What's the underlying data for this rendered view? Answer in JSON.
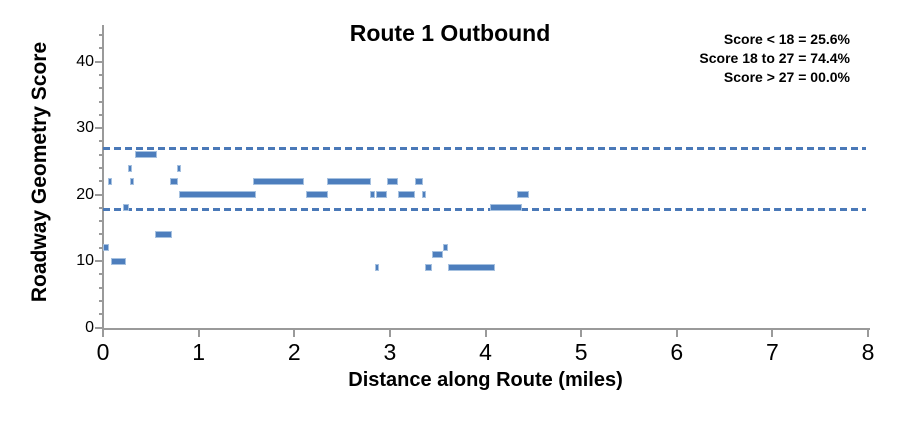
{
  "colors": {
    "marker_fill": "#4d7ebd",
    "marker_edge": "#a6c1e0",
    "dashed_line": "#4a79b8",
    "axis": "#9a9a9a",
    "text": "#000000",
    "background": "#ffffff"
  },
  "chart_data": {
    "type": "scatter",
    "marker": "horizontal-dash",
    "title": "Route 1 Outbound",
    "xlabel": "Distance along Route (miles)",
    "ylabel": "Roadway Geometry Score",
    "xlim": [
      0,
      8
    ],
    "ylim": [
      0,
      45
    ],
    "x_ticks": [
      0,
      1,
      2,
      3,
      4,
      5,
      6,
      7,
      8
    ],
    "y_ticks": [
      0,
      10,
      20,
      30,
      40
    ],
    "y_minor_step": 2,
    "grid": false,
    "legend": "none",
    "threshold_lines": [
      {
        "y": 27,
        "style": "dashed"
      },
      {
        "y": 17.7,
        "style": "dashed"
      }
    ],
    "annotations": {
      "position": "top-right",
      "lines": [
        "Score < 18 = 25.6%",
        "Score 18 to 27 = 74.4%",
        "Score > 27 = 00.0%"
      ]
    },
    "segments": [
      {
        "score": 12,
        "from": 0.0,
        "to": 0.06
      },
      {
        "score": 22,
        "from": 0.05,
        "to": 0.08
      },
      {
        "score": 10,
        "from": 0.08,
        "to": 0.24
      },
      {
        "score": 18,
        "from": 0.21,
        "to": 0.27
      },
      {
        "score": 24,
        "from": 0.26,
        "to": 0.3
      },
      {
        "score": 22,
        "from": 0.28,
        "to": 0.31
      },
      {
        "score": 26,
        "from": 0.33,
        "to": 0.56
      },
      {
        "score": 14,
        "from": 0.54,
        "to": 0.72
      },
      {
        "score": 22,
        "from": 0.7,
        "to": 0.78
      },
      {
        "score": 24,
        "from": 0.77,
        "to": 0.79
      },
      {
        "score": 20,
        "from": 0.79,
        "to": 1.6
      },
      {
        "score": 22,
        "from": 1.57,
        "to": 2.1
      },
      {
        "score": 20,
        "from": 2.12,
        "to": 2.35
      },
      {
        "score": 22,
        "from": 2.34,
        "to": 2.8
      },
      {
        "score": 20,
        "from": 2.79,
        "to": 2.84
      },
      {
        "score": 9,
        "from": 2.84,
        "to": 2.86
      },
      {
        "score": 20,
        "from": 2.86,
        "to": 2.97
      },
      {
        "score": 22,
        "from": 2.97,
        "to": 3.08
      },
      {
        "score": 20,
        "from": 3.08,
        "to": 3.26
      },
      {
        "score": 22,
        "from": 3.26,
        "to": 3.35
      },
      {
        "score": 20,
        "from": 3.34,
        "to": 3.37
      },
      {
        "score": 9,
        "from": 3.37,
        "to": 3.44
      },
      {
        "score": 11,
        "from": 3.44,
        "to": 3.56
      },
      {
        "score": 12,
        "from": 3.56,
        "to": 3.61
      },
      {
        "score": 9,
        "from": 3.61,
        "to": 4.1
      },
      {
        "score": 18,
        "from": 4.05,
        "to": 4.38
      },
      {
        "score": 20,
        "from": 4.33,
        "to": 4.46
      }
    ]
  }
}
